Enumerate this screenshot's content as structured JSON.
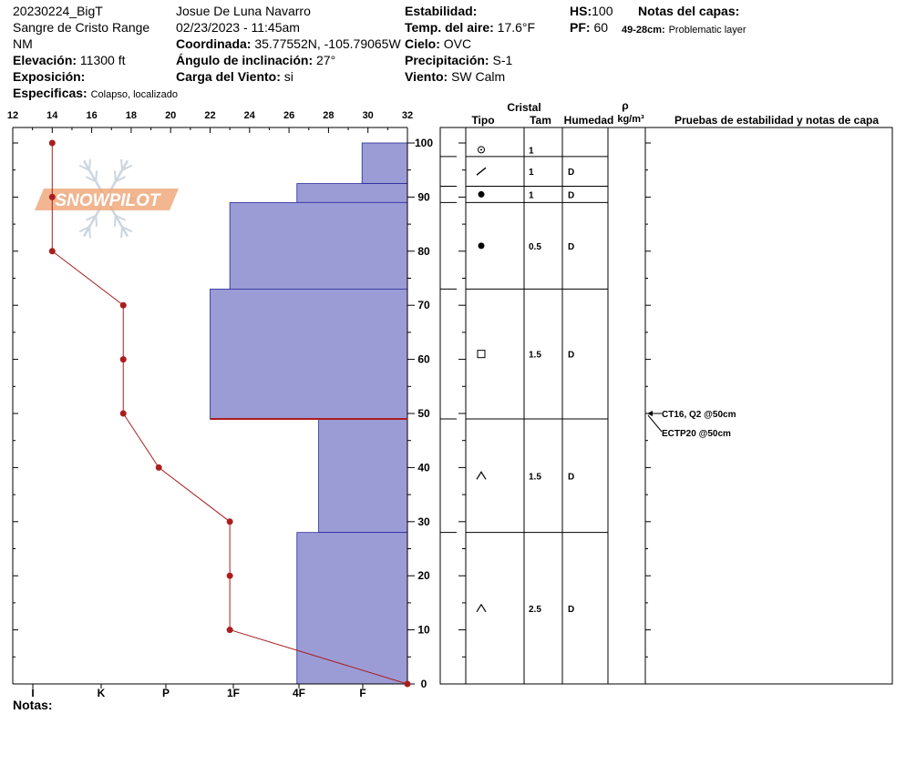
{
  "header": {
    "site": "20230224_BigT",
    "range": "Sangre de Cristo Range",
    "state": "NM",
    "elevation_label": "Elevación:",
    "elevation": "11300 ft",
    "aspect_label": "Exposición:",
    "aspect": "",
    "specifics_label": "Especificas:",
    "specifics": "Colapso, localizado",
    "observer": "Josue  De Luna Navarro",
    "datetime": "02/23/2023 - 11:45am",
    "coord_label": "Coordinada:",
    "coord": "35.77552N, -105.79065W",
    "slope_label": "Ángulo de inclinación:",
    "slope": "27°",
    "wind_load_label": "Carga del Viento:",
    "wind_load": "si",
    "stability_label": "Estabilidad:",
    "stability": "",
    "air_temp_label": "Temp. del aire:",
    "air_temp": "17.6°F",
    "sky_label": "Cielo:",
    "sky": "OVC",
    "precip_label": "Precipitación:",
    "precip": "S-1",
    "wind_label": "Viento:",
    "wind": "SW Calm",
    "hs_label": "HS:",
    "hs": "100",
    "pf_label": "PF:",
    "pf": "60",
    "layer_notes_label": "Notas del capas:",
    "layer_note_depth": "49-28cm:",
    "layer_note_text": "Problematic layer"
  },
  "logo_text": "SNOWPILOT",
  "notes_label": "Notas:",
  "colors": {
    "hardness_fill": "#9b9bd6",
    "hardness_stroke": "#2a2a9a",
    "temp": "#aa1e1e",
    "weak_layer": "#aa1e1e",
    "logo": "#f0a97d",
    "snowflake": "#cdd6de"
  },
  "columns": {
    "cristal": "Cristal",
    "tipo": "Tipo",
    "tam": "Tam",
    "humedad": "Humedad",
    "rho": "ρ",
    "rho_unit": "kg/m³",
    "tests": "Pruebas de estabilidad y notas de capa"
  },
  "chart_data": {
    "type": "snow-profile",
    "temp_axis": {
      "ticks": [
        12,
        14,
        16,
        18,
        20,
        22,
        24,
        26,
        28,
        30,
        32
      ],
      "range": [
        12,
        32
      ]
    },
    "height_axis": {
      "ticks": [
        0,
        10,
        20,
        30,
        40,
        50,
        60,
        70,
        80,
        90,
        100
      ],
      "range": [
        0,
        100
      ]
    },
    "hardness_axis": {
      "labels": [
        "I",
        "K",
        "P",
        "1F",
        "4F",
        "F"
      ]
    },
    "temperature_profile": [
      {
        "height": 100,
        "temp": 14
      },
      {
        "height": 90,
        "temp": 14
      },
      {
        "height": 80,
        "temp": 14
      },
      {
        "height": 70,
        "temp": 17.6
      },
      {
        "height": 60,
        "temp": 17.6
      },
      {
        "height": 50,
        "temp": 17.6
      },
      {
        "height": 40,
        "temp": 19.4
      },
      {
        "height": 30,
        "temp": 23
      },
      {
        "height": 20,
        "temp": 23
      },
      {
        "height": 10,
        "temp": 23
      },
      {
        "height": 0,
        "temp": 32
      }
    ],
    "layers": [
      {
        "top": 100,
        "bottom": 92.5,
        "hardness_temp": 29.7
      },
      {
        "top": 92.5,
        "bottom": 89,
        "hardness_temp": 26.4
      },
      {
        "top": 89,
        "bottom": 73,
        "hardness_temp": 23
      },
      {
        "top": 73,
        "bottom": 49,
        "hardness_temp": 22
      },
      {
        "top": 49,
        "bottom": 28,
        "hardness_temp": 27.5
      },
      {
        "top": 28,
        "bottom": 0,
        "hardness_temp": 26.4
      }
    ],
    "weak_layer_height": 49,
    "crystal_rows": [
      {
        "top": 100,
        "bottom": 97.5,
        "type_icon": "rounding-facet-icon",
        "size": "1",
        "moisture": ""
      },
      {
        "top": 97.5,
        "bottom": 92,
        "type_icon": "decomposing-fragment-icon",
        "size": "1",
        "moisture": "D"
      },
      {
        "top": 92,
        "bottom": 89,
        "type_icon": "rounded-grain-icon",
        "size": "1",
        "moisture": "D"
      },
      {
        "top": 89,
        "bottom": 73,
        "type_icon": "rounded-grain-icon",
        "size": "0.5",
        "moisture": "D"
      },
      {
        "top": 73,
        "bottom": 49,
        "type_icon": "faceted-crystal-icon",
        "size": "1.5",
        "moisture": "D"
      },
      {
        "top": 49,
        "bottom": 28,
        "type_icon": "depth-hoar-icon",
        "size": "1.5",
        "moisture": "D"
      },
      {
        "top": 28,
        "bottom": 0,
        "type_icon": "depth-hoar-icon",
        "size": "2.5",
        "moisture": "D"
      }
    ],
    "tests": [
      {
        "height": 50,
        "text": "CT16, Q2 @50cm"
      },
      {
        "height": 50,
        "text": "ECTP20 @50cm"
      }
    ]
  }
}
